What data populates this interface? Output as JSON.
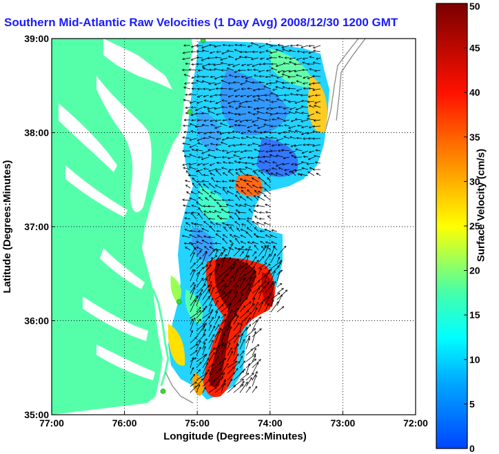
{
  "title": "Southern Mid-Atlantic Raw Velocities (1 Day Avg) 2008/12/30 1200 GMT",
  "chart_data": {
    "type": "heatmap",
    "title": "Southern Mid-Atlantic Raw Velocities (1 Day Avg) 2008/12/30 1200 GMT",
    "xlabel": "Longitude (Degrees:Minutes)",
    "ylabel": "Latitude (Degrees:Minutes)",
    "x_tick_labels": [
      "77:00",
      "76:00",
      "75:00",
      "74:00",
      "73:00",
      "72:00"
    ],
    "y_tick_labels": [
      "39:00",
      "38:00",
      "37:00",
      "36:00",
      "35:00"
    ],
    "xlim": [
      -77,
      -72
    ],
    "ylim": [
      35,
      39
    ],
    "grid": true,
    "colorbar": {
      "label": "Surface Velocity (cm/s)",
      "ticks": [
        "0",
        "5",
        "10",
        "15",
        "20",
        "25",
        "30",
        "35",
        "40",
        "45",
        "50"
      ],
      "range": [
        0,
        50
      ],
      "colors": [
        "#0055ff",
        "#00ccff",
        "#33ffcc",
        "#66ff66",
        "#ffff00",
        "#ff8800",
        "#ff0000",
        "#800000"
      ]
    },
    "land_color": "#55ffaa",
    "station_color": "#33dd33",
    "stations": [
      {
        "lon": -74.92,
        "lat": 38.98
      },
      {
        "lon": -75.1,
        "lat": 38.22
      },
      {
        "lon": -75.25,
        "lat": 36.2
      },
      {
        "lon": -75.47,
        "lat": 35.25
      }
    ]
  }
}
